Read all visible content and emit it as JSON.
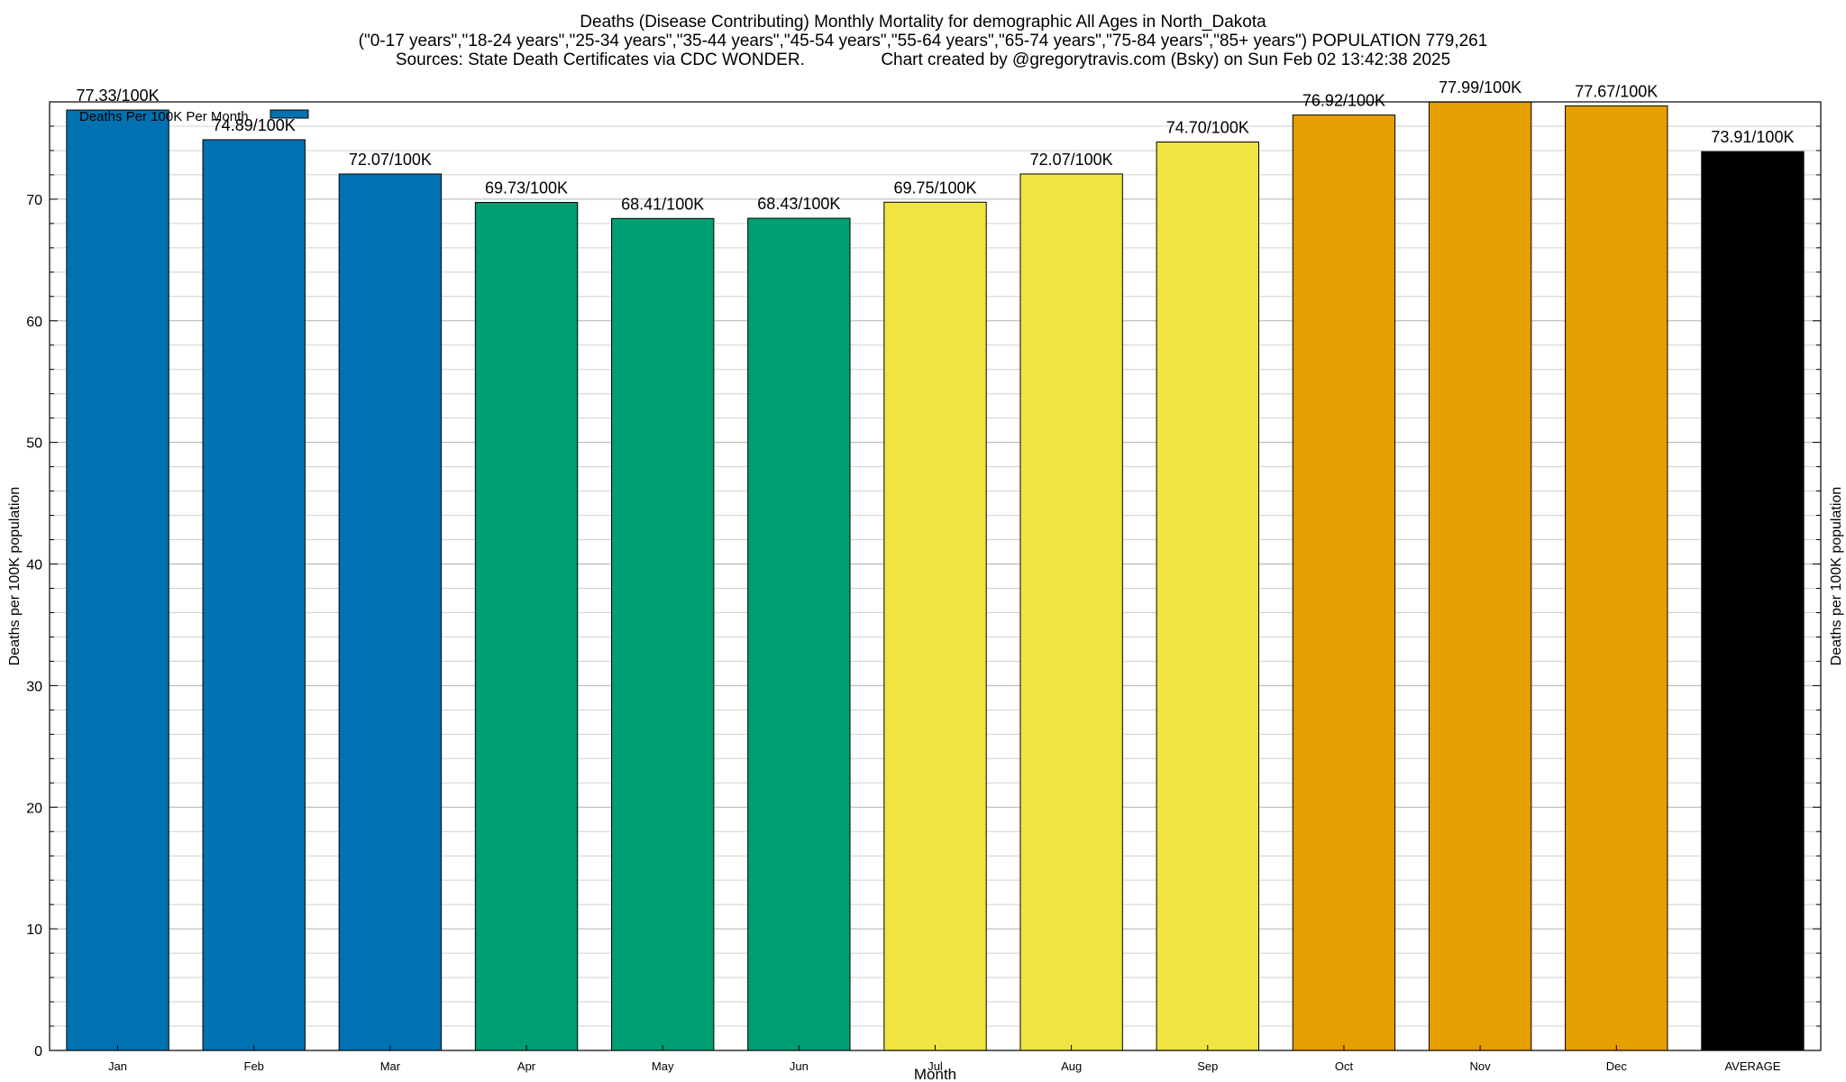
{
  "chart_data": {
    "type": "bar",
    "title": "Deaths (Disease Contributing) Monthly Mortality for demographic All Ages in North_Dakota",
    "subtitle": "(\"0-17 years\",\"18-24 years\",\"25-34 years\",\"35-44 years\",\"45-54 years\",\"55-64 years\",\"65-74 years\",\"75-84 years\",\"85+ years\") POPULATION 779,261",
    "source_line": "Sources: State Death Certificates via CDC WONDER.                Chart created by @gregorytravis.com (Bsky) on Sun Feb 02 13:42:38 2025",
    "xlabel": "Month",
    "ylabel": "Deaths per 100K population",
    "y2label": "Deaths per 100K population",
    "ylim": [
      0,
      78
    ],
    "yticks": [
      0,
      10,
      20,
      30,
      40,
      50,
      60,
      70
    ],
    "grid": true,
    "legend": {
      "label": "Deaths Per 100K Per Month",
      "placement": "top-left",
      "color": "#0072b2"
    },
    "categories": [
      "Jan",
      "Feb",
      "Mar",
      "Apr",
      "May",
      "Jun",
      "Jul",
      "Aug",
      "Sep",
      "Oct",
      "Nov",
      "Dec",
      "AVERAGE"
    ],
    "values": [
      77.33,
      74.89,
      72.07,
      69.73,
      68.41,
      68.43,
      69.75,
      72.07,
      74.7,
      76.92,
      77.99,
      77.67,
      73.91
    ],
    "data_labels": [
      "77.33/100K",
      "74.89/100K",
      "72.07/100K",
      "69.73/100K",
      "68.41/100K",
      "68.43/100K",
      "69.75/100K",
      "72.07/100K",
      "74.70/100K",
      "76.92/100K",
      "77.99/100K",
      "77.67/100K",
      "73.91/100K"
    ],
    "colors": [
      "#0072b2",
      "#0072b2",
      "#0072b2",
      "#009e73",
      "#009e73",
      "#009e73",
      "#f0e442",
      "#f0e442",
      "#f0e442",
      "#e69f00",
      "#e69f00",
      "#e69f00",
      "#000000"
    ]
  }
}
